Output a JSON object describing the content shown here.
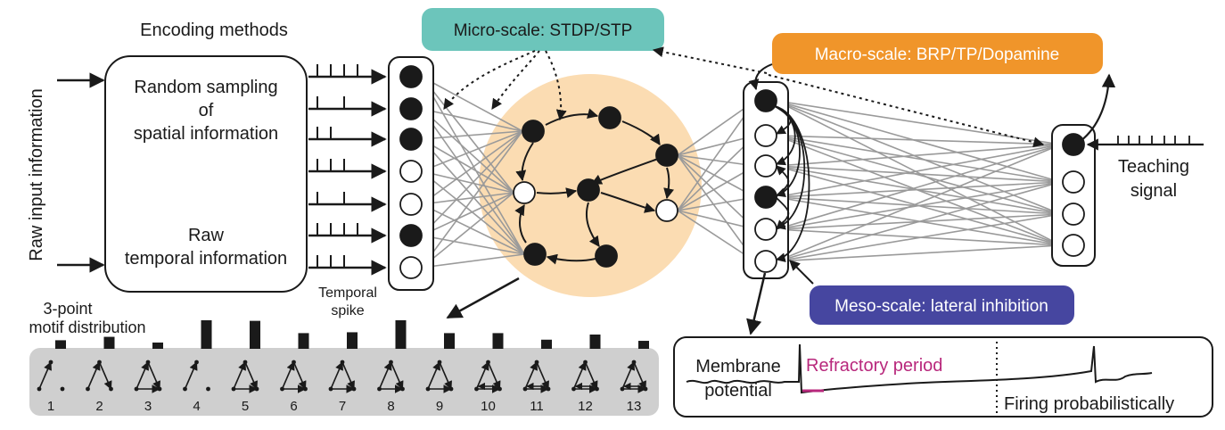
{
  "encoding": {
    "title": "Encoding methods",
    "raw_input_label": "Raw input information",
    "box_text_1": [
      "Random sampling",
      "of",
      "spatial information"
    ],
    "box_text_2": [
      "Raw",
      "temporal information"
    ],
    "temporal_spike": [
      "Temporal",
      "spike"
    ],
    "motif_title": [
      "3-point",
      "motif distribution"
    ]
  },
  "scales": {
    "micro": "Micro-scale: STDP/STP",
    "macro": "Macro-scale: BRP/TP/Dopamine",
    "meso": "Meso-scale: lateral inhibition"
  },
  "teaching": [
    "Teaching",
    "signal"
  ],
  "membrane": {
    "label": [
      "Membrane",
      "potential"
    ],
    "refractory": "Refractory period",
    "firing": "Firing probabilistically"
  },
  "motifs": {
    "labels": [
      "1",
      "2",
      "3",
      "4",
      "5",
      "6",
      "7",
      "8",
      "9",
      "10",
      "11",
      "12",
      "13"
    ],
    "values": [
      0.3,
      0.42,
      0.22,
      1.0,
      0.98,
      0.55,
      0.58,
      1.0,
      0.55,
      0.55,
      0.32,
      0.5,
      0.28
    ]
  },
  "colors": {
    "micro_fill": "#6cc5bb",
    "macro_fill": "#f0952a",
    "meso_fill": "#4646a0",
    "reservoir": "#fbdcb2",
    "motif_panel": "#cfcfcf",
    "refractory": "#b8287c",
    "connection": "#9a9a9a"
  }
}
